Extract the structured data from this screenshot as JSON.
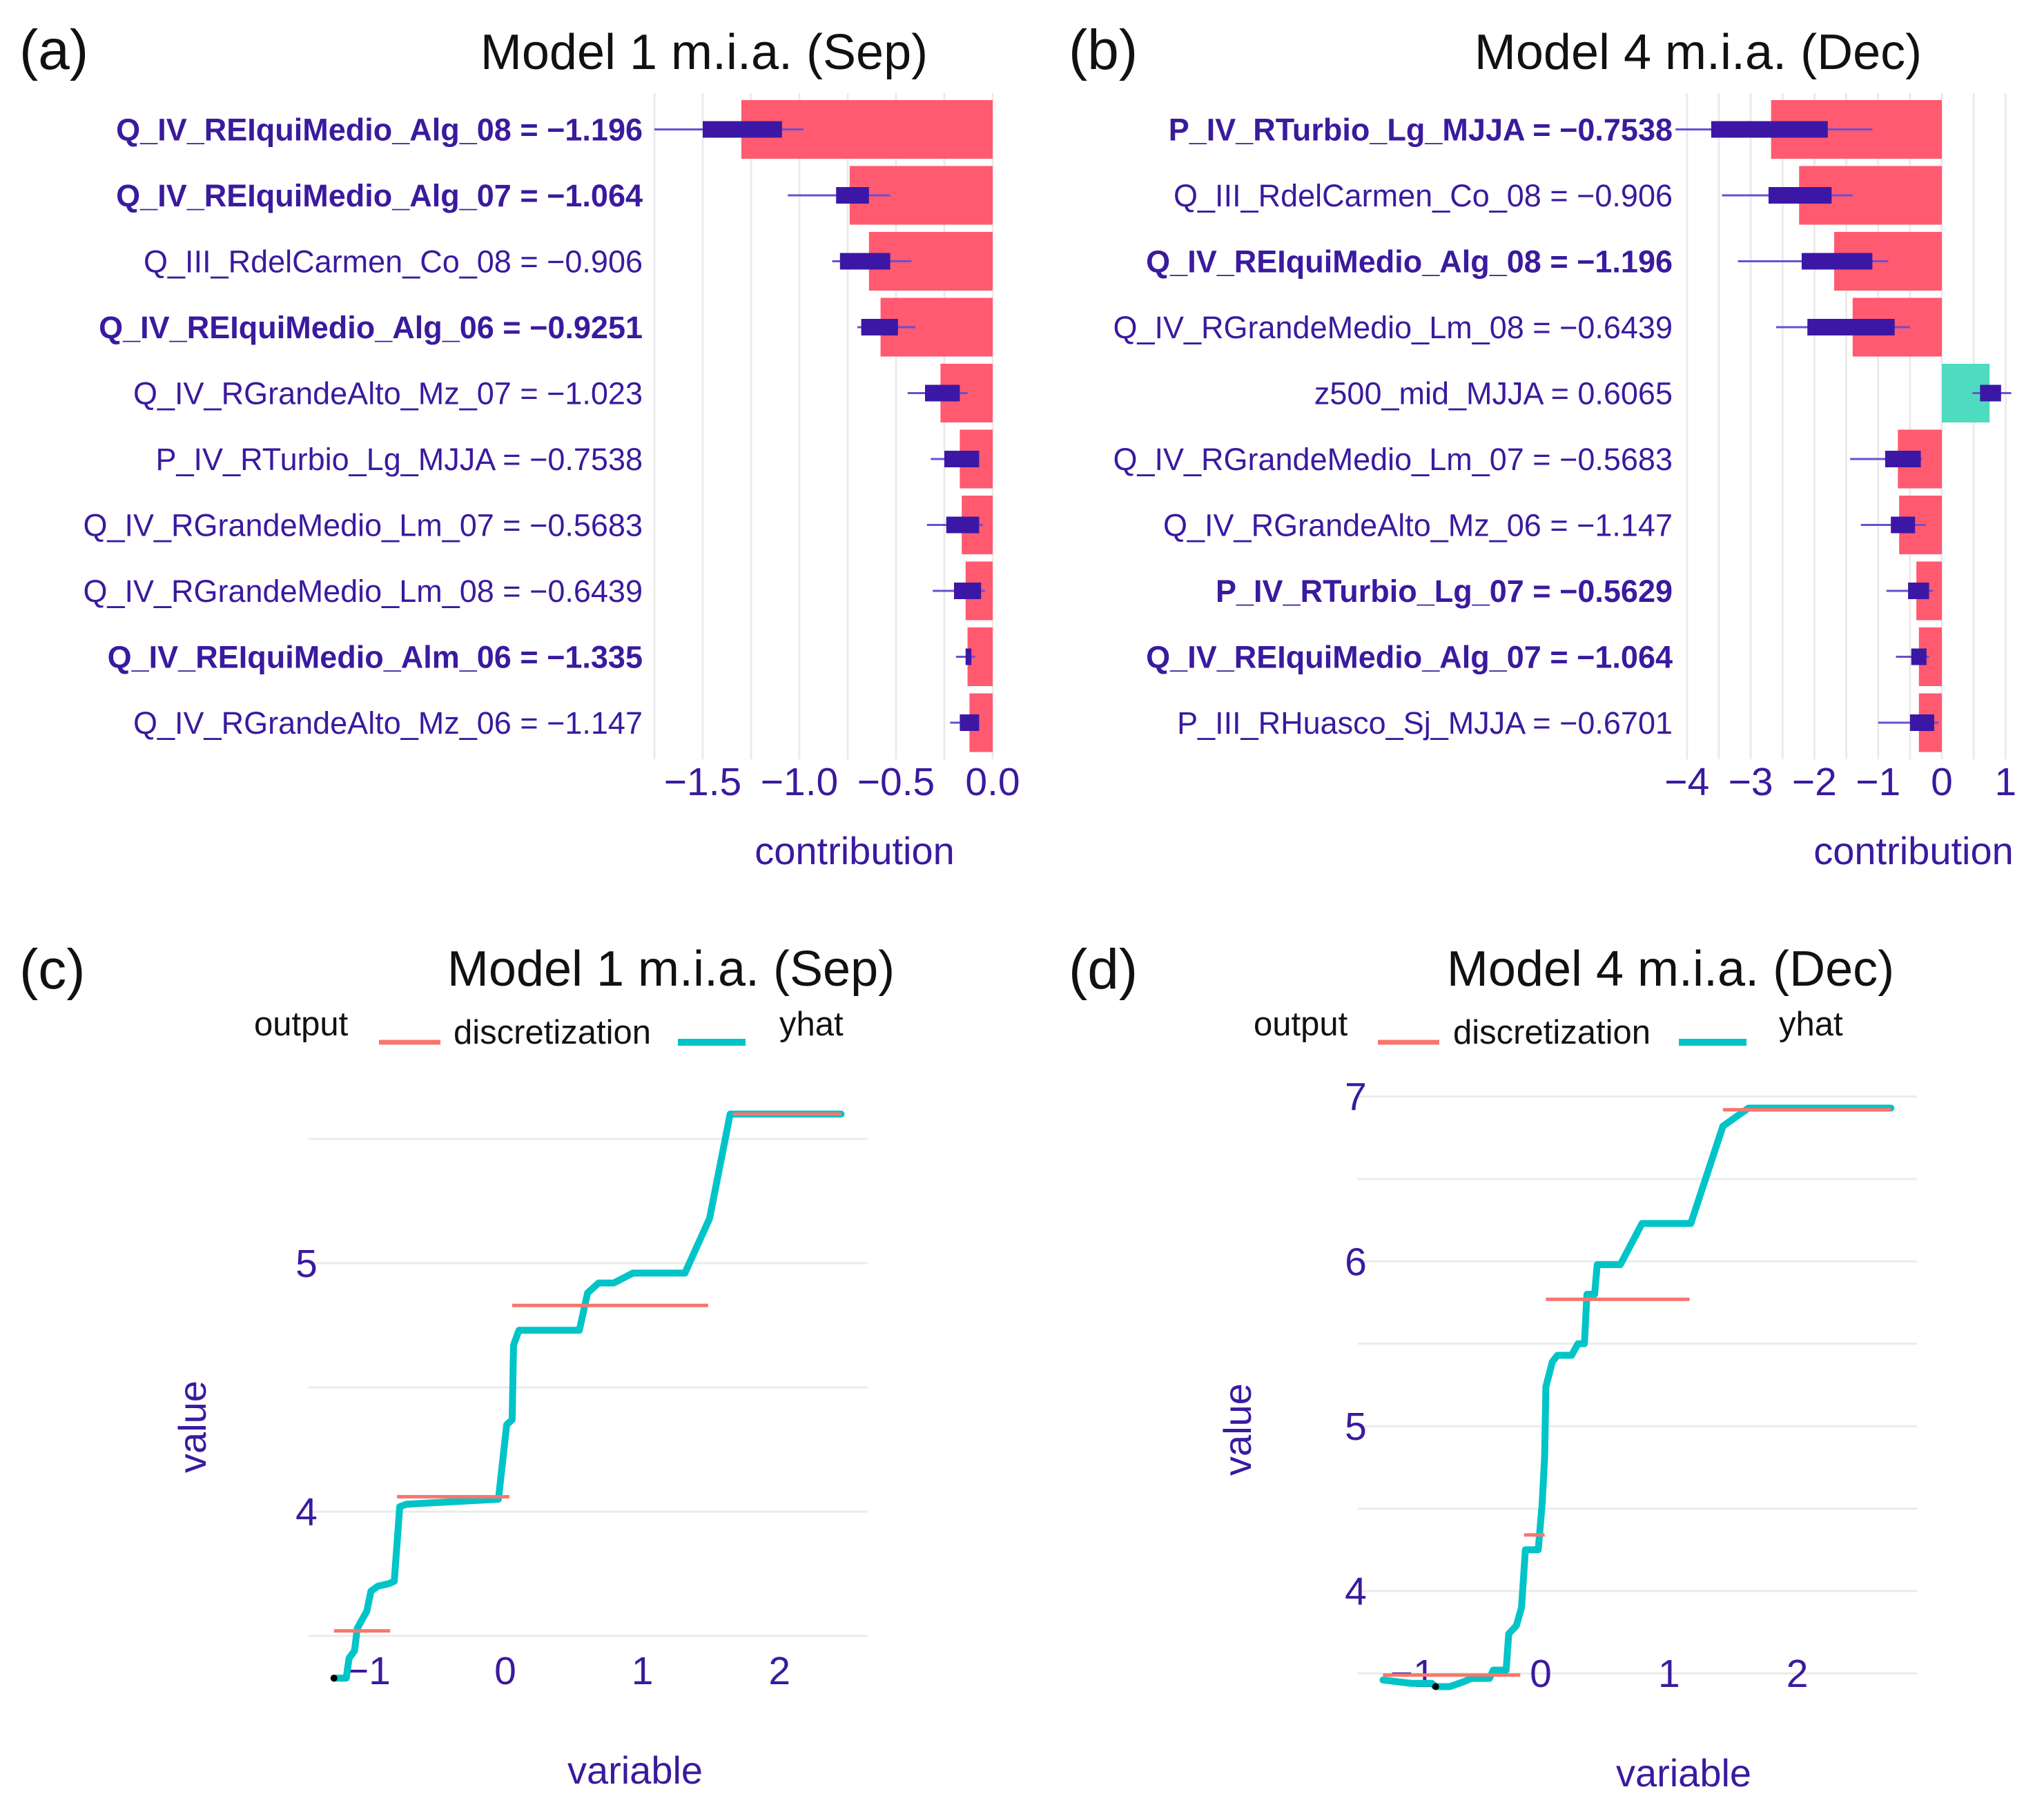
{
  "colors": {
    "text": "#3a1a9e",
    "negative_bar": "#ff5a70",
    "positive_bar": "#4fdbbf",
    "box": "#3c17a5",
    "yhat": "#00c4c8",
    "discretization": "#f8766d",
    "grid": "#ebebeb"
  },
  "chart_data": [
    {
      "type": "bar",
      "panel_tag": "(a)",
      "title": "Model 1 m.i.a. (Sep)",
      "xlabel": "contribution",
      "xlim": [
        -1.75,
        0
      ],
      "grid_step": 0.25,
      "xticks": [
        {
          "value": -1.5,
          "label": "−1.5"
        },
        {
          "value": -1.0,
          "label": "−1.0"
        },
        {
          "value": -0.5,
          "label": "−0.5"
        },
        {
          "value": 0,
          "label": "0.0"
        }
      ],
      "features": [
        {
          "label": "Q_IV_REIquiMedio_Alg_08 = −1.196",
          "bold": true,
          "contribution": -1.3,
          "box": [
            -1.5,
            -1.09
          ],
          "whisker": [
            -1.75,
            -0.98
          ]
        },
        {
          "label": "Q_IV_REIquiMedio_Alg_07 = −1.064",
          "bold": true,
          "contribution": -0.74,
          "box": [
            -0.81,
            -0.64
          ],
          "whisker": [
            -1.06,
            -0.53
          ]
        },
        {
          "label": "Q_III_RdelCarmen_Co_08 = −0.906",
          "bold": false,
          "contribution": -0.64,
          "box": [
            -0.79,
            -0.53
          ],
          "whisker": [
            -0.83,
            -0.42
          ]
        },
        {
          "label": "Q_IV_REIquiMedio_Alg_06 = −0.9251",
          "bold": true,
          "contribution": -0.58,
          "box": [
            -0.68,
            -0.49
          ],
          "whisker": [
            -0.7,
            -0.4
          ]
        },
        {
          "label": "Q_IV_RGrandeAlto_Mz_07 = −1.023",
          "bold": false,
          "contribution": -0.27,
          "box": [
            -0.35,
            -0.17
          ],
          "whisker": [
            -0.44,
            -0.13
          ]
        },
        {
          "label": "P_IV_RTurbio_Lg_MJJA = −0.7538",
          "bold": false,
          "contribution": -0.17,
          "box": [
            -0.25,
            -0.07
          ],
          "whisker": [
            -0.32,
            -0.07
          ]
        },
        {
          "label": "Q_IV_RGrandeMedio_Lm_07 = −0.5683",
          "bold": false,
          "contribution": -0.16,
          "box": [
            -0.24,
            -0.07
          ],
          "whisker": [
            -0.34,
            -0.05
          ]
        },
        {
          "label": "Q_IV_RGrandeMedio_Lm_08 = −0.6439",
          "bold": false,
          "contribution": -0.14,
          "box": [
            -0.2,
            -0.06
          ],
          "whisker": [
            -0.31,
            -0.04
          ]
        },
        {
          "label": "Q_IV_REIquiMedio_Alm_06 = −1.335",
          "bold": true,
          "contribution": -0.13,
          "box": [
            -0.14,
            -0.11
          ],
          "whisker": [
            -0.19,
            -0.09
          ]
        },
        {
          "label": "Q_IV_RGrandeAlto_Mz_06 = −1.147",
          "bold": false,
          "contribution": -0.12,
          "box": [
            -0.17,
            -0.07
          ],
          "whisker": [
            -0.22,
            -0.07
          ]
        }
      ]
    },
    {
      "type": "bar",
      "panel_tag": "(b)",
      "title": "Model 4 m.i.a. (Dec)",
      "xlabel": "contribution",
      "xlim": [
        -4,
        1
      ],
      "grid_step": 0.5,
      "xticks": [
        {
          "value": -4,
          "label": "−4"
        },
        {
          "value": -3,
          "label": "−3"
        },
        {
          "value": -2,
          "label": "−2"
        },
        {
          "value": -1,
          "label": "−1"
        },
        {
          "value": 0,
          "label": "0"
        },
        {
          "value": 1,
          "label": "1"
        }
      ],
      "features": [
        {
          "label": "P_IV_RTurbio_Lg_MJJA = −0.7538",
          "bold": true,
          "contribution": -2.68,
          "box": [
            -3.62,
            -1.79
          ],
          "whisker": [
            -4.18,
            -1.09
          ]
        },
        {
          "label": "Q_III_RdelCarmen_Co_08 = −0.906",
          "bold": false,
          "contribution": -2.24,
          "box": [
            -2.72,
            -1.73
          ],
          "whisker": [
            -3.45,
            -1.4
          ]
        },
        {
          "label": "Q_IV_REIquiMedio_Alg_08 = −1.196",
          "bold": true,
          "contribution": -1.69,
          "box": [
            -2.2,
            -1.09
          ],
          "whisker": [
            -3.2,
            -0.84
          ]
        },
        {
          "label": "Q_IV_RGrandeMedio_Lm_08 = −0.6439",
          "bold": false,
          "contribution": -1.4,
          "box": [
            -2.11,
            -0.74
          ],
          "whisker": [
            -2.6,
            -0.5
          ]
        },
        {
          "label": "z500_mid_MJJA = 0.6065",
          "bold": false,
          "contribution": 0.75,
          "box": [
            0.6,
            0.93
          ],
          "whisker": [
            0.48,
            1.09
          ]
        },
        {
          "label": "Q_IV_RGrandeMedio_Lm_07 = −0.5683",
          "bold": false,
          "contribution": -0.69,
          "box": [
            -0.89,
            -0.33
          ],
          "whisker": [
            -1.44,
            -0.31
          ]
        },
        {
          "label": "Q_IV_RGrandeAlto_Mz_06 = −1.147",
          "bold": false,
          "contribution": -0.67,
          "box": [
            -0.8,
            -0.42
          ],
          "whisker": [
            -1.27,
            -0.25
          ]
        },
        {
          "label": "P_IV_RTurbio_Lg_07 = −0.5629",
          "bold": true,
          "contribution": -0.4,
          "box": [
            -0.53,
            -0.2
          ],
          "whisker": [
            -0.87,
            -0.14
          ]
        },
        {
          "label": "Q_IV_REIquiMedio_Alg_07 = −1.064",
          "bold": true,
          "contribution": -0.36,
          "box": [
            -0.48,
            -0.24
          ],
          "whisker": [
            -0.72,
            -0.2
          ]
        },
        {
          "label": "P_III_RHuasco_Sj_MJJA = −0.6701",
          "bold": false,
          "contribution": -0.36,
          "box": [
            -0.5,
            -0.12
          ],
          "whisker": [
            -1.0,
            -0.05
          ]
        }
      ]
    },
    {
      "type": "line",
      "panel_tag": "(c)",
      "title": "Model 1 m.i.a. (Sep)",
      "xlabel": "variable",
      "ylabel": "value",
      "legend": {
        "title": "output",
        "entries": [
          "discretization",
          "yhat"
        ],
        "position": "top"
      },
      "xticks": [
        {
          "value": -1,
          "label": "−1"
        },
        {
          "value": 0,
          "label": "0"
        },
        {
          "value": 1,
          "label": "1"
        },
        {
          "value": 2,
          "label": "2"
        }
      ],
      "yticks": [
        {
          "value": 4,
          "label": "4"
        },
        {
          "value": 5,
          "label": "5"
        }
      ],
      "ygrid": [
        3.5,
        4,
        4.5,
        5,
        5.5
      ],
      "yhat": [
        [
          -1.25,
          3.33
        ],
        [
          -1.16,
          3.33
        ],
        [
          -1.14,
          3.41
        ],
        [
          -1.1,
          3.44
        ],
        [
          -1.08,
          3.53
        ],
        [
          -1.01,
          3.6
        ],
        [
          -0.98,
          3.68
        ],
        [
          -0.93,
          3.7
        ],
        [
          -0.85,
          3.71
        ],
        [
          -0.81,
          3.72
        ],
        [
          -0.77,
          4.02
        ],
        [
          -0.72,
          4.03
        ],
        [
          -0.05,
          4.05
        ],
        [
          0.01,
          4.35
        ],
        [
          0.05,
          4.37
        ],
        [
          0.06,
          4.67
        ],
        [
          0.1,
          4.73
        ],
        [
          0.54,
          4.73
        ],
        [
          0.6,
          4.88
        ],
        [
          0.68,
          4.92
        ],
        [
          0.79,
          4.92
        ],
        [
          0.93,
          4.96
        ],
        [
          1.31,
          4.96
        ],
        [
          1.49,
          5.18
        ],
        [
          1.64,
          5.6
        ],
        [
          2.45,
          5.6
        ]
      ],
      "discretization": [
        {
          "x": [
            -1.25,
            -0.84
          ],
          "y": 3.52
        },
        {
          "x": [
            -0.79,
            0.03
          ],
          "y": 4.06
        },
        {
          "x": [
            0.05,
            1.48
          ],
          "y": 4.83
        },
        {
          "x": [
            1.66,
            2.45
          ],
          "y": 5.6
        }
      ],
      "observation": [
        -1.25,
        3.33
      ]
    },
    {
      "type": "line",
      "panel_tag": "(d)",
      "title": "Model 4 m.i.a. (Dec)",
      "xlabel": "variable",
      "ylabel": "value",
      "legend": {
        "title": "output",
        "entries": [
          "discretization",
          "yhat"
        ],
        "position": "top"
      },
      "xticks": [
        {
          "value": -1,
          "label": "−1"
        },
        {
          "value": 0,
          "label": "0"
        },
        {
          "value": 1,
          "label": "1"
        },
        {
          "value": 2,
          "label": "2"
        }
      ],
      "yticks": [
        {
          "value": 4,
          "label": "4"
        },
        {
          "value": 5,
          "label": "5"
        },
        {
          "value": 6,
          "label": "6"
        },
        {
          "value": 7,
          "label": "7"
        }
      ],
      "ygrid": [
        3.5,
        4,
        4.5,
        5,
        5.5,
        6,
        6.5,
        7
      ],
      "yhat": [
        [
          -1.23,
          3.46
        ],
        [
          -1.01,
          3.44
        ],
        [
          -0.85,
          3.44
        ],
        [
          -0.82,
          3.42
        ],
        [
          -0.71,
          3.42
        ],
        [
          -0.6,
          3.45
        ],
        [
          -0.54,
          3.47
        ],
        [
          -0.4,
          3.47
        ],
        [
          -0.37,
          3.52
        ],
        [
          -0.27,
          3.52
        ],
        [
          -0.25,
          3.74
        ],
        [
          -0.19,
          3.79
        ],
        [
          -0.15,
          3.9
        ],
        [
          -0.12,
          4.25
        ],
        [
          -0.02,
          4.25
        ],
        [
          0.01,
          4.52
        ],
        [
          0.03,
          4.81
        ],
        [
          0.04,
          5.24
        ],
        [
          0.09,
          5.39
        ],
        [
          0.13,
          5.43
        ],
        [
          0.24,
          5.43
        ],
        [
          0.29,
          5.5
        ],
        [
          0.34,
          5.5
        ],
        [
          0.36,
          5.8
        ],
        [
          0.42,
          5.8
        ],
        [
          0.44,
          5.98
        ],
        [
          0.62,
          5.98
        ],
        [
          0.79,
          6.23
        ],
        [
          1.17,
          6.23
        ],
        [
          1.42,
          6.82
        ],
        [
          1.62,
          6.93
        ],
        [
          2.73,
          6.93
        ]
      ],
      "discretization": [
        {
          "x": [
            -1.23,
            -0.16
          ],
          "y": 3.49
        },
        {
          "x": [
            -0.13,
            0.03
          ],
          "y": 4.34
        },
        {
          "x": [
            0.04,
            1.16
          ],
          "y": 5.77
        },
        {
          "x": [
            1.42,
            2.73
          ],
          "y": 6.92
        }
      ],
      "observation": [
        -0.82,
        3.42
      ]
    }
  ]
}
